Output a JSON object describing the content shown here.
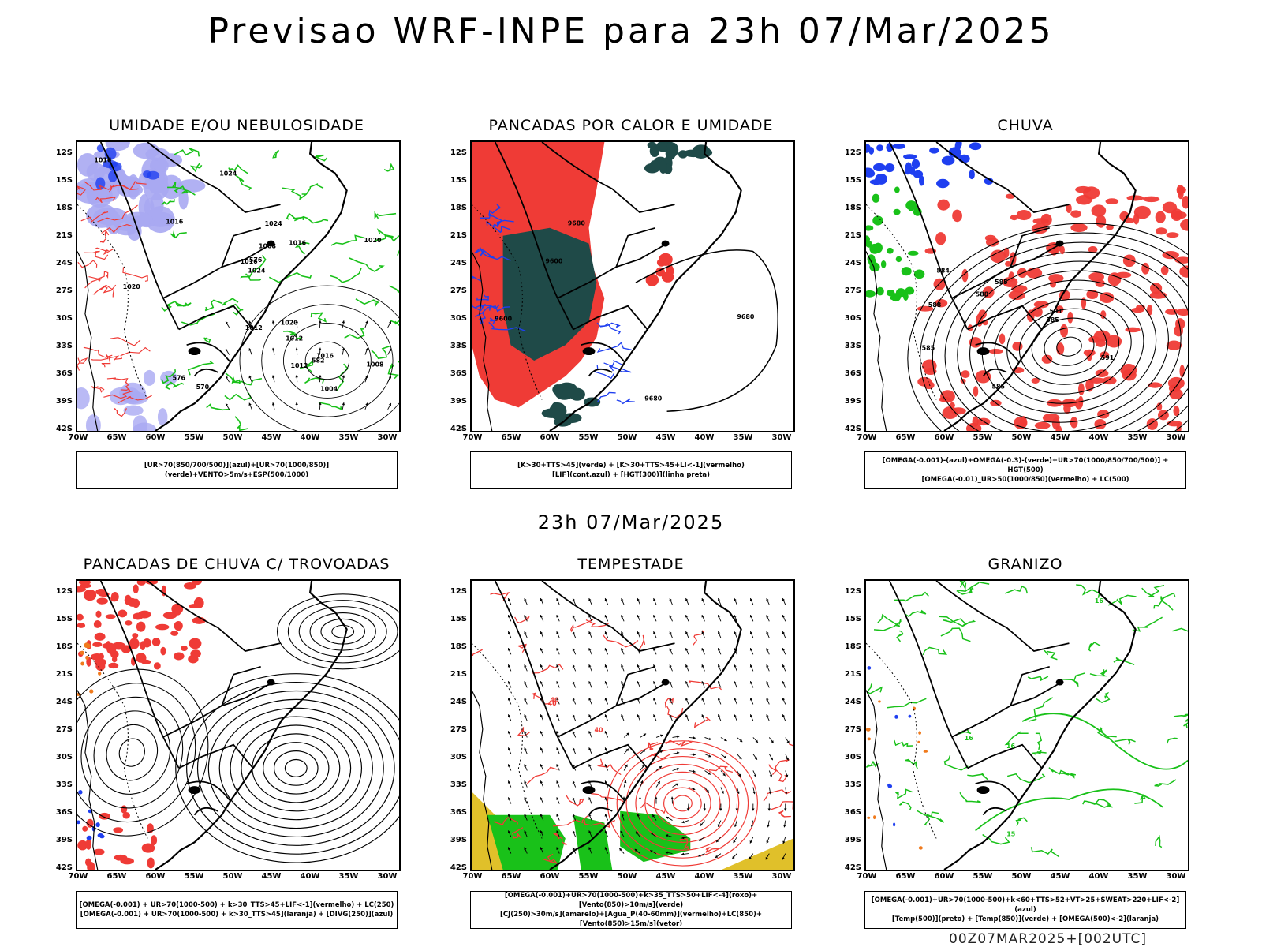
{
  "title": "Previsao WRF-INPE  para 23h 07/Mar/2025",
  "mid_time": "23h 07/Mar/2025",
  "footer": "00Z07MAR2025+[002UTC]",
  "lat_labels": [
    "12S",
    "15S",
    "18S",
    "21S",
    "24S",
    "27S",
    "30S",
    "33S",
    "36S",
    "39S",
    "42S"
  ],
  "lon_labels": [
    "70W",
    "65W",
    "60W",
    "55W",
    "50W",
    "45W",
    "40W",
    "35W",
    "30W"
  ],
  "colors": {
    "red": "#ef3b36",
    "green": "#19c119",
    "blue": "#1f3ff0",
    "lavender": "#a9a9f2",
    "darkteal": "#1f4a48",
    "yellow": "#e0c02a",
    "orange": "#f07a1c"
  },
  "panels": [
    {
      "title": "UMIDADE E/OU NEBULOSIDADE",
      "legend": [
        "[UR>70(850/700/500)](azul)+[UR>70(1000/850)](verde)+VENTO>5m/s+ESP(500/1000)"
      ],
      "contour_labels": [
        "1016",
        "1012",
        "1016",
        "1020",
        "1020",
        "1024",
        "1020",
        "1008",
        "1004",
        "1008",
        "1012",
        "1016",
        "1024",
        "1024",
        "1012",
        "576",
        "576",
        "570",
        "582",
        "1016",
        "1016"
      ]
    },
    {
      "title": "PANCADAS POR CALOR E UMIDADE",
      "legend": [
        "[K>30+TTS>45](verde) + [K>30+TTS>45+LI<-1](vermelho)",
        "[LIF](cont.azul) + [HGT(300)](linha preta)"
      ],
      "contour_labels": [
        "9680",
        "9600",
        "9680",
        "9600",
        "9680"
      ]
    },
    {
      "title": "CHUVA",
      "legend": [
        "[OMEGA(-0.001)-(azul)+OMEGA(-0.3)-(verde)+UR>70(1000/850/700/500)] + HGT(500)",
        "[OMEGA(-0.01)_UR>50(1000/850)(vermelho) + LC(500)"
      ],
      "contour_labels": [
        "585",
        "585",
        "588",
        "591",
        "585",
        "584",
        "588",
        "591",
        "585"
      ]
    },
    {
      "title": "PANCADAS DE CHUVA C/ TROVOADAS",
      "legend": [
        "[OMEGA(-0.001) + UR>70(1000-500) + k>30_TTS>45+LIF<-1](vermelho) + LC(250)",
        "[OMEGA(-0.001) + UR>70(1000-500) + k>30_TTS>45](laranja) + [DIVG(250)](azul)"
      ],
      "contour_labels": []
    },
    {
      "title": "TEMPESTADE",
      "legend": [
        "[OMEGA(-0.001)+UR>70(1000-500)+k>35_TTS>50+LIF<-4](roxo)+[Vento(850)>10m/s](verde)",
        "[CJ(250)>30m/s](amarelo)+[Agua_P(40-60mm)](vermelho)+LC(850)+[Vento(850)>15m/s](vetor)"
      ],
      "contour_labels": [
        "40",
        "40",
        "40"
      ]
    },
    {
      "title": "GRANIZO",
      "legend": [
        "[OMEGA(-0.001)+UR>70(1000-500)+k<60+TTS>52+VT>25+SWEAT>220+LIF<-2](azul)",
        "[Temp(500)](preto) + [Temp(850)](verde) + [OMEGA(500)<-2](laranja)"
      ],
      "contour_labels": [
        "16",
        "16",
        "15",
        "16"
      ]
    }
  ]
}
